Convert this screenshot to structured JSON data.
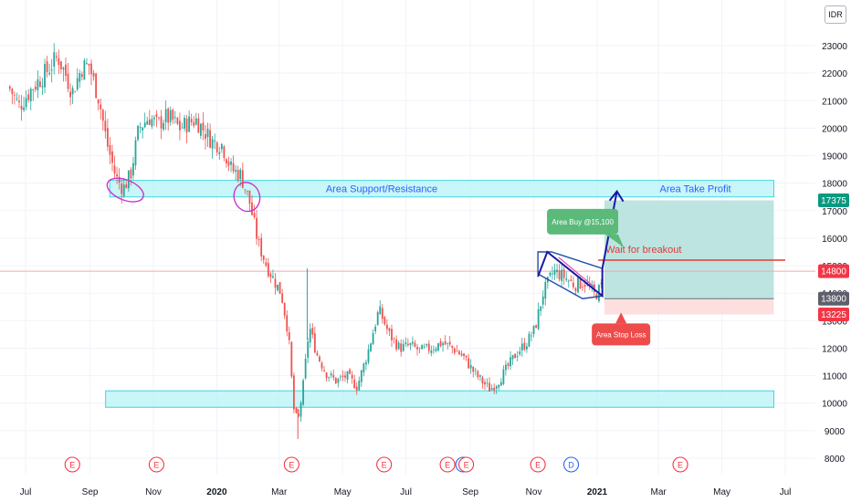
{
  "chart_data": {
    "type": "candlestick",
    "currency": "IDR",
    "ylim": [
      7600,
      24000
    ],
    "y_ticks": [
      8000,
      9000,
      10000,
      11000,
      12000,
      13000,
      14000,
      15000,
      16000,
      17000,
      18000,
      19000,
      20000,
      21000,
      22000,
      23000
    ],
    "x_ticks": [
      {
        "label": "Jul",
        "date": "2019-07-01",
        "bold": false
      },
      {
        "label": "Sep",
        "date": "2019-09-01",
        "bold": false
      },
      {
        "label": "Nov",
        "date": "2019-11-01",
        "bold": false
      },
      {
        "label": "2020",
        "date": "2020-01-01",
        "bold": true
      },
      {
        "label": "Mar",
        "date": "2020-03-01",
        "bold": false
      },
      {
        "label": "May",
        "date": "2020-05-01",
        "bold": false
      },
      {
        "label": "Jul",
        "date": "2020-07-01",
        "bold": false
      },
      {
        "label": "Sep",
        "date": "2020-09-01",
        "bold": false
      },
      {
        "label": "Nov",
        "date": "2020-11-01",
        "bold": false
      },
      {
        "label": "2021",
        "date": "2021-01-01",
        "bold": true
      },
      {
        "label": "Mar",
        "date": "2021-03-01",
        "bold": false
      },
      {
        "label": "May",
        "date": "2021-05-01",
        "bold": false
      },
      {
        "label": "Jul",
        "date": "2021-07-01",
        "bold": false
      }
    ],
    "series": [
      {
        "kind": "close_path_approx",
        "points": [
          [
            "2019-06-15",
            21500
          ],
          [
            "2019-06-25",
            20800
          ],
          [
            "2019-07-08",
            21500
          ],
          [
            "2019-07-20",
            22000
          ],
          [
            "2019-08-01",
            22600
          ],
          [
            "2019-08-08",
            22000
          ],
          [
            "2019-08-15",
            21300
          ],
          [
            "2019-08-24",
            22200
          ],
          [
            "2019-08-31",
            22300
          ],
          [
            "2019-09-10",
            21000
          ],
          [
            "2019-09-17",
            19500
          ],
          [
            "2019-09-26",
            18200
          ],
          [
            "2019-10-03",
            17800
          ],
          [
            "2019-10-10",
            18300
          ],
          [
            "2019-10-18",
            20000
          ],
          [
            "2019-10-28",
            20400
          ],
          [
            "2019-11-05",
            20100
          ],
          [
            "2019-11-12",
            20400
          ],
          [
            "2019-11-19",
            20300
          ],
          [
            "2019-11-26",
            20000
          ],
          [
            "2019-12-05",
            20200
          ],
          [
            "2019-12-12",
            20300
          ],
          [
            "2019-12-20",
            19900
          ],
          [
            "2019-12-28",
            19500
          ],
          [
            "2020-01-06",
            19400
          ],
          [
            "2020-01-15",
            18500
          ],
          [
            "2020-01-24",
            18300
          ],
          [
            "2020-02-01",
            17400
          ],
          [
            "2020-02-10",
            15800
          ],
          [
            "2020-02-18",
            15000
          ],
          [
            "2020-02-26",
            14400
          ],
          [
            "2020-03-03",
            14000
          ],
          [
            "2020-03-10",
            12500
          ],
          [
            "2020-03-15",
            9800
          ],
          [
            "2020-03-19",
            9300
          ],
          [
            "2020-03-24",
            10600
          ],
          [
            "2020-03-30",
            12800
          ],
          [
            "2020-04-06",
            11800
          ],
          [
            "2020-04-15",
            11100
          ],
          [
            "2020-04-25",
            10800
          ],
          [
            "2020-05-05",
            11000
          ],
          [
            "2020-05-15",
            10600
          ],
          [
            "2020-05-25",
            11800
          ],
          [
            "2020-06-05",
            13400
          ],
          [
            "2020-06-15",
            12500
          ],
          [
            "2020-06-25",
            12000
          ],
          [
            "2020-07-05",
            12100
          ],
          [
            "2020-07-15",
            11900
          ],
          [
            "2020-07-25",
            12000
          ],
          [
            "2020-08-05",
            12200
          ],
          [
            "2020-08-15",
            12000
          ],
          [
            "2020-08-25",
            11700
          ],
          [
            "2020-09-05",
            11100
          ],
          [
            "2020-09-12",
            10800
          ],
          [
            "2020-09-20",
            10500
          ],
          [
            "2020-09-28",
            10800
          ],
          [
            "2020-10-05",
            11200
          ],
          [
            "2020-10-15",
            11800
          ],
          [
            "2020-10-25",
            12200
          ],
          [
            "2020-11-02",
            12700
          ],
          [
            "2020-11-10",
            14000
          ],
          [
            "2020-11-20",
            14800
          ],
          [
            "2020-11-30",
            14600
          ],
          [
            "2020-12-10",
            14300
          ],
          [
            "2020-12-20",
            14400
          ],
          [
            "2020-12-30",
            13900
          ],
          [
            "2021-01-06",
            14300
          ]
        ]
      }
    ],
    "price_markers": [
      {
        "value": 17375,
        "label": "17375",
        "color": "#089981"
      },
      {
        "value": 14800,
        "label": "14800",
        "color": "#f23645"
      },
      {
        "value": 13800,
        "label": "13800",
        "color": "#5d606b"
      },
      {
        "value": 13225,
        "label": "13225",
        "color": "#f23645"
      }
    ],
    "hline": {
      "value": 14800,
      "color": "#f9a8a8"
    },
    "zones": [
      {
        "name": "support-resistance-zone",
        "label": "Area Support/Resistance",
        "from": "2019-09-20",
        "to": "2021-06-20",
        "low": 17500,
        "high": 18100
      },
      {
        "name": "take-profit-label-zone",
        "label": "Area Take Profit",
        "from": "2021-01-06",
        "to": "2021-06-20",
        "low": 17500,
        "high": 18100
      },
      {
        "name": "lower-support-zone",
        "label": "",
        "from": "2019-09-16",
        "to": "2021-06-20",
        "low": 9850,
        "high": 10450
      }
    ],
    "position": {
      "entry": 13800,
      "target": 17375,
      "stop": 13225,
      "from": "2021-01-08",
      "to": "2021-06-20",
      "profit_color": "#b2dfdb",
      "loss_color": "#fddcdc"
    },
    "breakout_line": {
      "value": 15200,
      "from": "2021-01-02",
      "to": "2021-07-01",
      "color": "#e53935",
      "label": "Wait for breakout"
    },
    "channel": {
      "points": [
        [
          "2020-11-05",
          15500
        ],
        [
          "2020-11-18",
          15500
        ],
        [
          "2021-01-06",
          14900
        ],
        [
          "2021-01-06",
          13900
        ],
        [
          "2020-12-18",
          13800
        ],
        [
          "2020-11-05",
          14700
        ]
      ],
      "color": "#1e4fa8"
    },
    "arrow": {
      "points": [
        [
          "2020-11-05",
          14600
        ],
        [
          "2020-11-14",
          15500
        ],
        [
          "2021-01-06",
          13900
        ],
        [
          "2021-01-06",
          14900
        ],
        [
          "2021-01-20",
          17700
        ]
      ],
      "color": "#1a1aa5"
    },
    "inner_arrow": {
      "from": [
        "2020-11-25",
        15300
      ],
      "to": [
        "2020-12-30",
        14200
      ],
      "color": "#d64bb0"
    },
    "ellipses": [
      {
        "date": "2019-10-05",
        "value": 17750
      },
      {
        "date": "2020-01-30",
        "value": 17500
      }
    ],
    "callouts": [
      {
        "name": "buy-callout",
        "label": "Area Buy @15,100",
        "date": "2020-12-18",
        "value": 16600,
        "bg": "#5bb97a",
        "pointer": "bottom-right"
      },
      {
        "name": "stoploss-callout",
        "label": "Area Stop Loss",
        "date": "2021-01-24",
        "value": 12500,
        "bg": "#ee4b4b",
        "pointer": "top"
      }
    ],
    "events": [
      {
        "date": "2019-08-15",
        "glyph": "E",
        "color": "#f23645"
      },
      {
        "date": "2019-11-04",
        "glyph": "E",
        "color": "#f23645"
      },
      {
        "date": "2020-03-13",
        "glyph": "E",
        "color": "#f23645"
      },
      {
        "date": "2020-06-10",
        "glyph": "E",
        "color": "#f23645"
      },
      {
        "date": "2020-08-10",
        "glyph": "E",
        "color": "#f23645"
      },
      {
        "date": "2020-08-25",
        "glyph": "",
        "color": "#2962ff"
      },
      {
        "date": "2020-08-28",
        "glyph": "E",
        "color": "#f23645"
      },
      {
        "date": "2020-11-05",
        "glyph": "E",
        "color": "#f23645"
      },
      {
        "date": "2020-12-07",
        "glyph": "D",
        "color": "#2962ff"
      },
      {
        "date": "2021-03-22",
        "glyph": "E",
        "color": "#f23645"
      }
    ]
  }
}
